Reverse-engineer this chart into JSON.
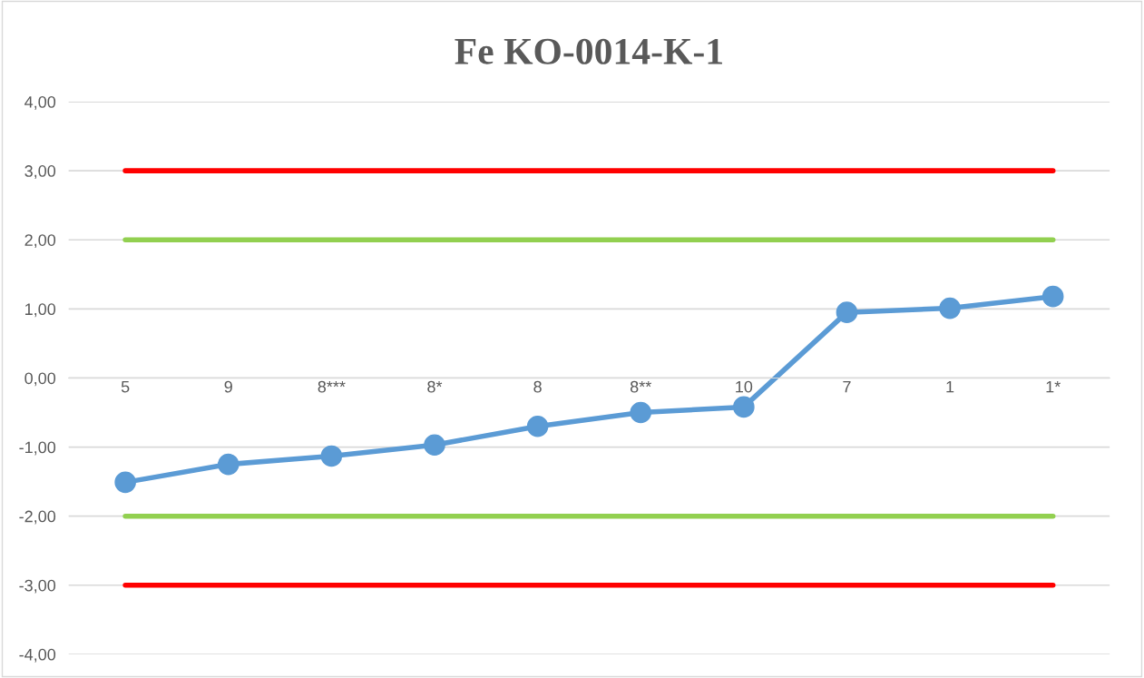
{
  "chart_data": {
    "type": "line",
    "title": "Fe KO-0014-K-1",
    "categories": [
      "5",
      "9",
      "8***",
      "8*",
      "8",
      "8**",
      "10",
      "7",
      "1",
      "1*"
    ],
    "series": [
      {
        "color": "#ff0000",
        "values": [
          3,
          3,
          3,
          3,
          3,
          3,
          3,
          3,
          3,
          3
        ],
        "marker": "none"
      },
      {
        "color": "#92d050",
        "values": [
          2,
          2,
          2,
          2,
          2,
          2,
          2,
          2,
          2,
          2
        ],
        "marker": "none"
      },
      {
        "color": "#92d050",
        "values": [
          -2,
          -2,
          -2,
          -2,
          -2,
          -2,
          -2,
          -2,
          -2,
          -2
        ],
        "marker": "none"
      },
      {
        "color": "#ff0000",
        "values": [
          -3,
          -3,
          -3,
          -3,
          -3,
          -3,
          -3,
          -3,
          -3,
          -3
        ],
        "marker": "none"
      },
      {
        "color": "#5b9bd5",
        "values": [
          -1.51,
          -1.25,
          -1.13,
          -0.97,
          -0.7,
          -0.5,
          -0.42,
          0.95,
          1.01,
          1.18
        ],
        "marker": "circle"
      }
    ],
    "ylim": [
      -4,
      4
    ],
    "yticks": [
      {
        "value": -4,
        "label": "-4,00"
      },
      {
        "value": -3,
        "label": "-3,00"
      },
      {
        "value": -2,
        "label": "-2,00"
      },
      {
        "value": -1,
        "label": "-1,00"
      },
      {
        "value": 0,
        "label": "0,00"
      },
      {
        "value": 1,
        "label": "1,00"
      },
      {
        "value": 2,
        "label": "2,00"
      },
      {
        "value": 3,
        "label": "3,00"
      },
      {
        "value": 4,
        "label": "4,00"
      }
    ],
    "grid": "y",
    "legend": false
  }
}
